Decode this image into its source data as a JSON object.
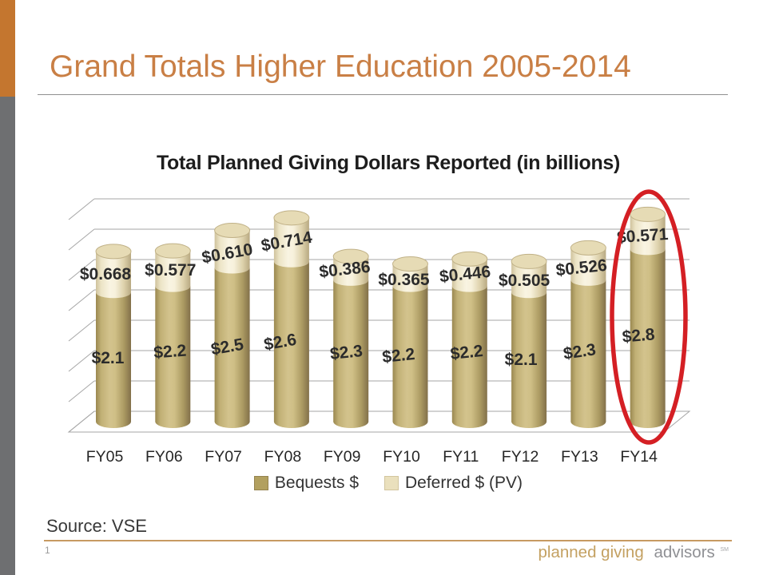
{
  "slide": {
    "title": "Grand Totals Higher Education 2005-2014",
    "source": "Source: VSE",
    "page_number": "1",
    "logo": {
      "part1": "planned giving",
      "part2": "advisors",
      "mark": "SM"
    }
  },
  "theme": {
    "accent_orange": "#c4762f",
    "accent_gray": "#6e6f71",
    "title_color": "#c97f45",
    "footer_line_color": "#c79a62",
    "gridline_color": "#a6a6a6",
    "label_color": "#2b2b2b"
  },
  "chart_data": {
    "type": "bar",
    "subtype": "3d-cylinder-stacked",
    "title": "Total Planned Giving Dollars Reported (in billions)",
    "categories": [
      "FY05",
      "FY06",
      "FY07",
      "FY08",
      "FY09",
      "FY10",
      "FY11",
      "FY12",
      "FY13",
      "FY14"
    ],
    "series": [
      {
        "name": "Bequests $",
        "color": "#b2a05f",
        "values": [
          2.1,
          2.2,
          2.5,
          2.6,
          2.3,
          2.2,
          2.2,
          2.1,
          2.3,
          2.8
        ],
        "label_prefix": "$",
        "label_decimals": 1
      },
      {
        "name": "Deferred $ (PV)",
        "color": "#eae0bd",
        "values": [
          0.668,
          0.577,
          0.61,
          0.714,
          0.386,
          0.365,
          0.446,
          0.505,
          0.526,
          0.571
        ],
        "label_prefix": "$",
        "label_decimals": 3
      }
    ],
    "annotation": {
      "type": "ellipse-highlight",
      "category": "FY14",
      "color": "#d41f24"
    },
    "axis": {
      "gridlines": true,
      "ylim": [
        0,
        4.0
      ],
      "gridline_step": 0.5,
      "tick_labels_visible": false
    },
    "legend_position": "bottom"
  }
}
